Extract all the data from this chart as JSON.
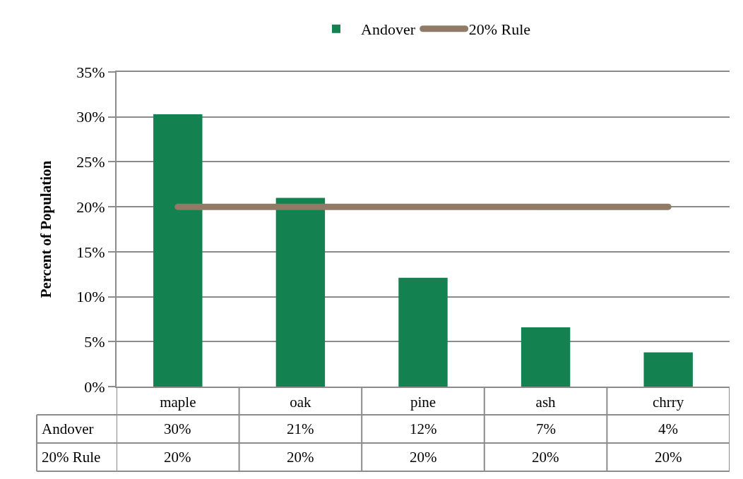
{
  "chart_data": {
    "type": "bar",
    "ylabel": "Percent of Population",
    "categories": [
      "maple",
      "oak",
      "pine",
      "ash",
      "chrry"
    ],
    "series": [
      {
        "name": "Andover",
        "color": "#138250",
        "values": [
          30.3,
          21.0,
          12.1,
          6.6,
          3.8
        ],
        "value_labels": [
          "30%",
          "21%",
          "12%",
          "7%",
          "4%"
        ]
      },
      {
        "name": "20% Rule",
        "type": "line",
        "color": "#917b66",
        "values": [
          20,
          20,
          20,
          20,
          20
        ],
        "value_labels": [
          "20%",
          "20%",
          "20%",
          "20%",
          "20%"
        ]
      }
    ],
    "ylim": [
      0,
      35
    ],
    "yticks": [
      {
        "value": 0,
        "label": "0%"
      },
      {
        "value": 5,
        "label": "5%"
      },
      {
        "value": 10,
        "label": "10%"
      },
      {
        "value": 15,
        "label": "15%"
      },
      {
        "value": 20,
        "label": "20%"
      },
      {
        "value": 25,
        "label": "25%"
      },
      {
        "value": 30,
        "label": "30%"
      },
      {
        "value": 35,
        "label": "35%"
      }
    ],
    "grid": "y",
    "legend": "top",
    "marker": "none",
    "line_style": "solid"
  }
}
